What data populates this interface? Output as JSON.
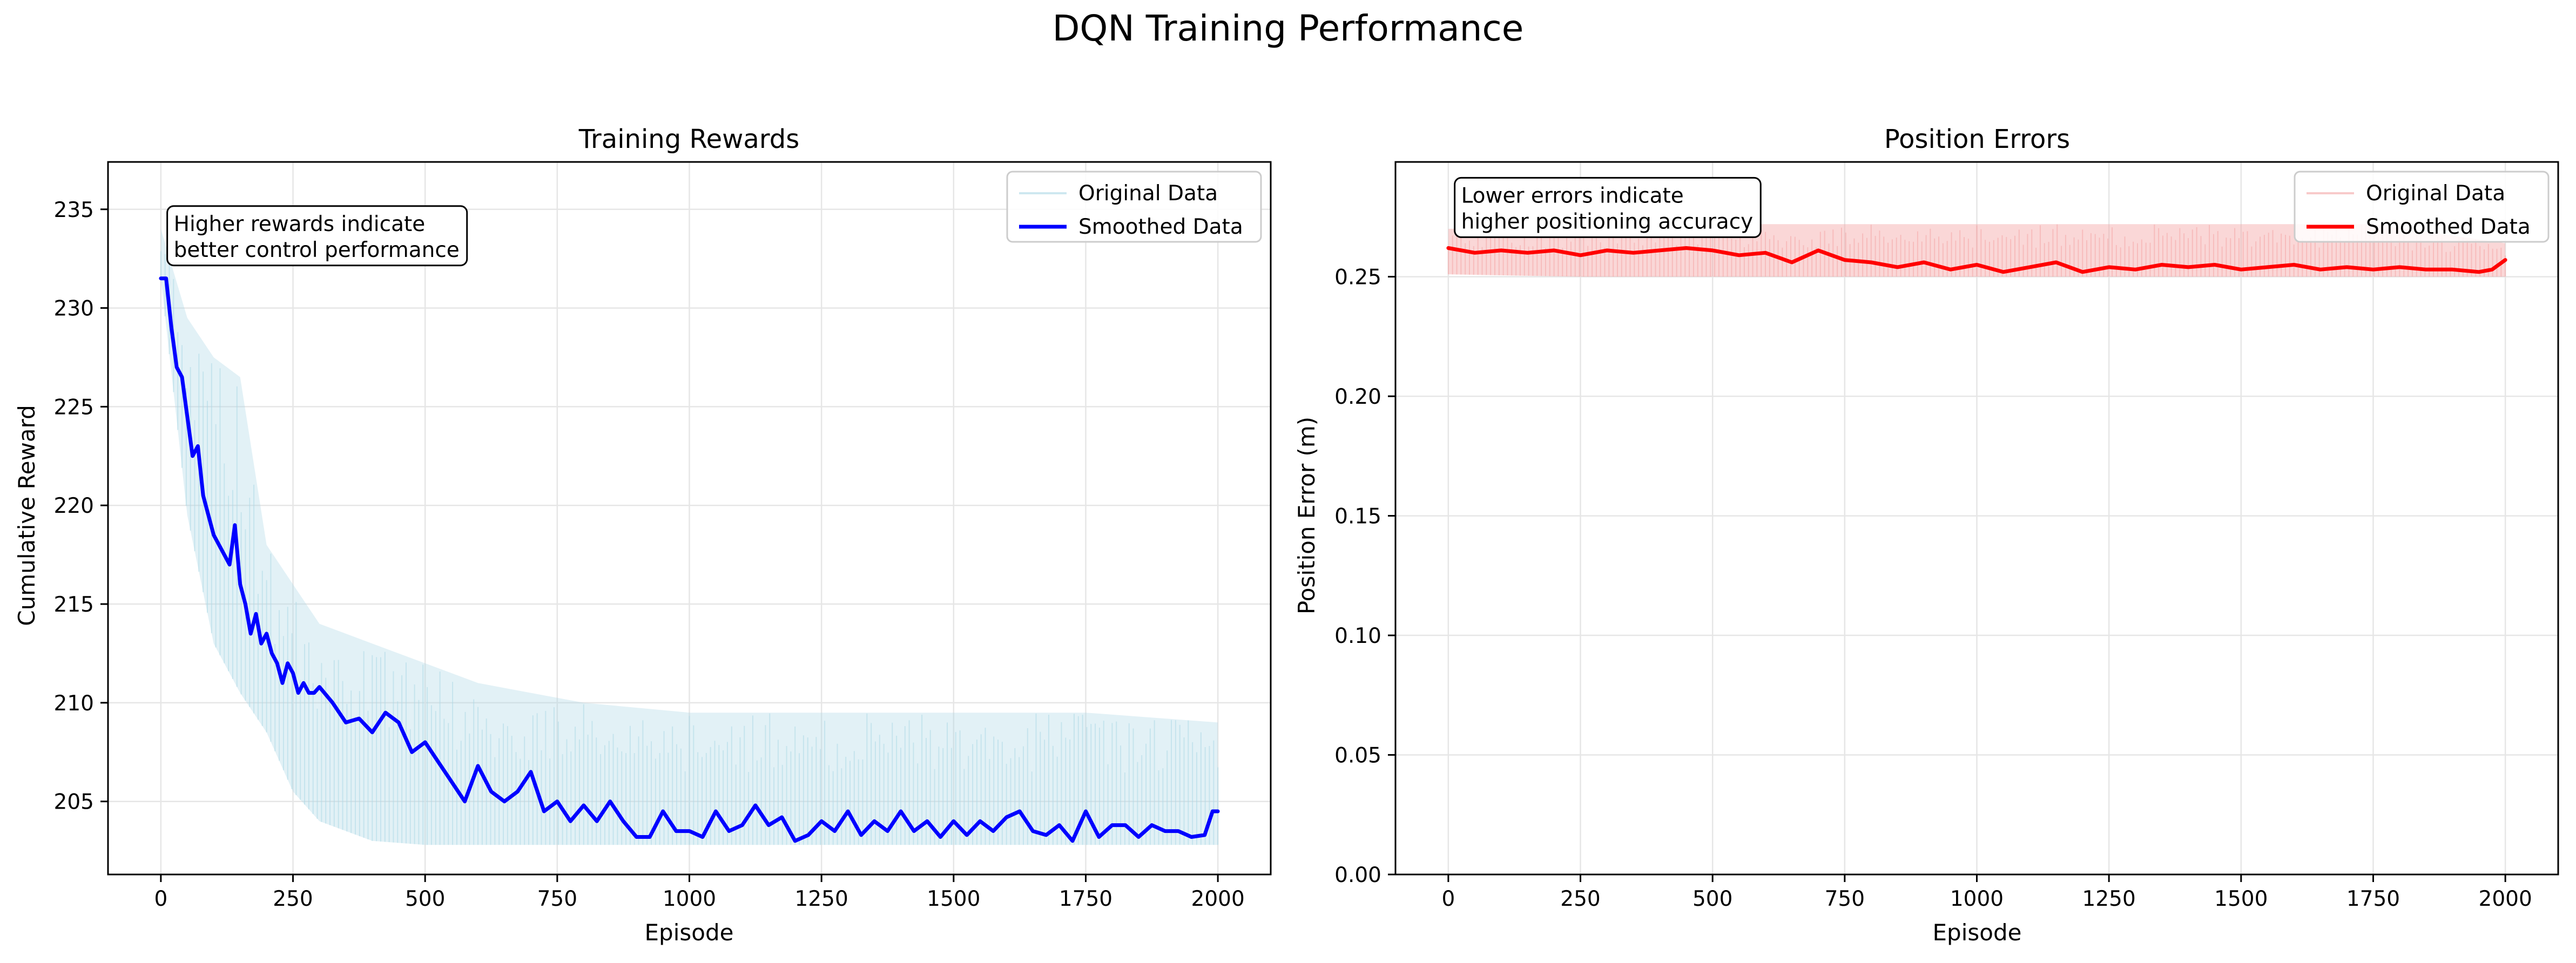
{
  "figure": {
    "title": "DQN Training Performance"
  },
  "colors": {
    "rewards_raw": "#add8e6",
    "rewards_smooth": "#0000ff",
    "errors_raw": "#f4a6a6",
    "errors_smooth": "#ff0000",
    "grid": "#e6e6e6"
  },
  "chart_data": [
    {
      "type": "line",
      "title": "Training Rewards",
      "xlabel": "Episode",
      "ylabel": "Cumulative Reward",
      "xlim": [
        -100,
        2100
      ],
      "ylim": [
        201.3,
        237.4
      ],
      "xticks": [
        0,
        250,
        500,
        750,
        1000,
        1250,
        1500,
        1750,
        2000
      ],
      "yticks": [
        205,
        210,
        215,
        220,
        225,
        230,
        235
      ],
      "grid": true,
      "legend_position": "top-right",
      "annotation": [
        "Higher rewards indicate",
        "better control performance"
      ],
      "annotation_anchor": [
        10,
        235
      ],
      "series": [
        {
          "name": "Original Data",
          "style": "band",
          "x": [
            0,
            50,
            100,
            150,
            200,
            250,
            300,
            400,
            500,
            600,
            700,
            800,
            1000,
            1250,
            1500,
            1750,
            2000
          ],
          "low": [
            231.5,
            219.5,
            213.0,
            210.5,
            208.5,
            205.5,
            204.0,
            203.0,
            202.8,
            202.8,
            202.8,
            202.8,
            202.8,
            202.8,
            202.8,
            202.8,
            202.8
          ],
          "high": [
            234.0,
            229.5,
            227.5,
            226.5,
            218.0,
            216.0,
            214.0,
            213.0,
            212.0,
            211.0,
            210.5,
            210.0,
            209.5,
            209.5,
            209.5,
            209.5,
            209.0
          ]
        },
        {
          "name": "Smoothed Data",
          "style": "line",
          "x": [
            0,
            10,
            20,
            30,
            40,
            50,
            60,
            70,
            80,
            90,
            100,
            110,
            120,
            130,
            140,
            150,
            160,
            170,
            180,
            190,
            200,
            210,
            220,
            230,
            240,
            250,
            260,
            270,
            280,
            290,
            300,
            325,
            350,
            375,
            400,
            425,
            450,
            475,
            500,
            525,
            550,
            575,
            600,
            625,
            650,
            675,
            700,
            725,
            750,
            775,
            800,
            825,
            850,
            875,
            900,
            925,
            950,
            975,
            1000,
            1025,
            1050,
            1075,
            1100,
            1125,
            1150,
            1175,
            1200,
            1225,
            1250,
            1275,
            1300,
            1325,
            1350,
            1375,
            1400,
            1425,
            1450,
            1475,
            1500,
            1525,
            1550,
            1575,
            1600,
            1625,
            1650,
            1675,
            1700,
            1725,
            1750,
            1775,
            1800,
            1825,
            1850,
            1875,
            1900,
            1925,
            1950,
            1975,
            1990,
            2000
          ],
          "y": [
            231.5,
            231.5,
            229.0,
            227.0,
            226.5,
            224.5,
            222.5,
            223.0,
            220.5,
            219.5,
            218.5,
            218.0,
            217.5,
            217.0,
            219.0,
            216.0,
            215.0,
            213.5,
            214.5,
            213.0,
            213.5,
            212.5,
            212.0,
            211.0,
            212.0,
            211.5,
            210.5,
            211.0,
            210.5,
            210.5,
            210.8,
            210.0,
            209.0,
            209.2,
            208.5,
            209.5,
            209.0,
            207.5,
            208.0,
            207.0,
            206.0,
            205.0,
            206.8,
            205.5,
            205.0,
            205.5,
            206.5,
            204.5,
            205.0,
            204.0,
            204.8,
            204.0,
            205.0,
            204.0,
            203.2,
            203.2,
            204.5,
            203.5,
            203.5,
            203.2,
            204.5,
            203.5,
            203.8,
            204.8,
            203.8,
            204.2,
            203.0,
            203.3,
            204.0,
            203.5,
            204.5,
            203.3,
            204.0,
            203.5,
            204.5,
            203.5,
            204.0,
            203.2,
            204.0,
            203.3,
            204.0,
            203.5,
            204.2,
            204.5,
            203.5,
            203.3,
            203.8,
            203.0,
            204.5,
            203.2,
            203.8,
            203.8,
            203.2,
            203.8,
            203.5,
            203.5,
            203.2,
            203.3,
            204.5,
            204.5
          ]
        }
      ]
    },
    {
      "type": "line",
      "title": "Position Errors",
      "xlabel": "Episode",
      "ylabel": "Position Error (m)",
      "xlim": [
        -100,
        2100
      ],
      "ylim": [
        0.0,
        0.298
      ],
      "xticks": [
        0,
        250,
        500,
        750,
        1000,
        1250,
        1500,
        1750,
        2000
      ],
      "yticks": [
        0.0,
        0.05,
        0.1,
        0.15,
        0.2,
        0.25
      ],
      "grid": true,
      "legend_position": "top-right",
      "annotation": [
        "Lower errors indicate",
        "higher positioning accuracy"
      ],
      "annotation_anchor": [
        10,
        0.29
      ],
      "series": [
        {
          "name": "Original Data",
          "style": "band",
          "x": [
            0,
            250,
            500,
            750,
            1000,
            1250,
            1500,
            1750,
            2000
          ],
          "low": [
            0.251,
            0.25,
            0.25,
            0.25,
            0.25,
            0.25,
            0.25,
            0.25,
            0.25
          ],
          "high": [
            0.27,
            0.272,
            0.272,
            0.272,
            0.272,
            0.272,
            0.272,
            0.272,
            0.264
          ]
        },
        {
          "name": "Smoothed Data",
          "style": "line",
          "x": [
            0,
            50,
            100,
            150,
            200,
            250,
            300,
            350,
            400,
            450,
            500,
            550,
            600,
            650,
            700,
            750,
            800,
            850,
            900,
            950,
            1000,
            1050,
            1100,
            1150,
            1200,
            1250,
            1300,
            1350,
            1400,
            1450,
            1500,
            1550,
            1600,
            1650,
            1700,
            1750,
            1800,
            1850,
            1900,
            1950,
            1975,
            2000
          ],
          "y": [
            0.262,
            0.26,
            0.261,
            0.26,
            0.261,
            0.259,
            0.261,
            0.26,
            0.261,
            0.262,
            0.261,
            0.259,
            0.26,
            0.256,
            0.261,
            0.257,
            0.256,
            0.254,
            0.256,
            0.253,
            0.255,
            0.252,
            0.254,
            0.256,
            0.252,
            0.254,
            0.253,
            0.255,
            0.254,
            0.255,
            0.253,
            0.254,
            0.255,
            0.253,
            0.254,
            0.253,
            0.254,
            0.253,
            0.253,
            0.252,
            0.253,
            0.257
          ]
        }
      ]
    }
  ]
}
